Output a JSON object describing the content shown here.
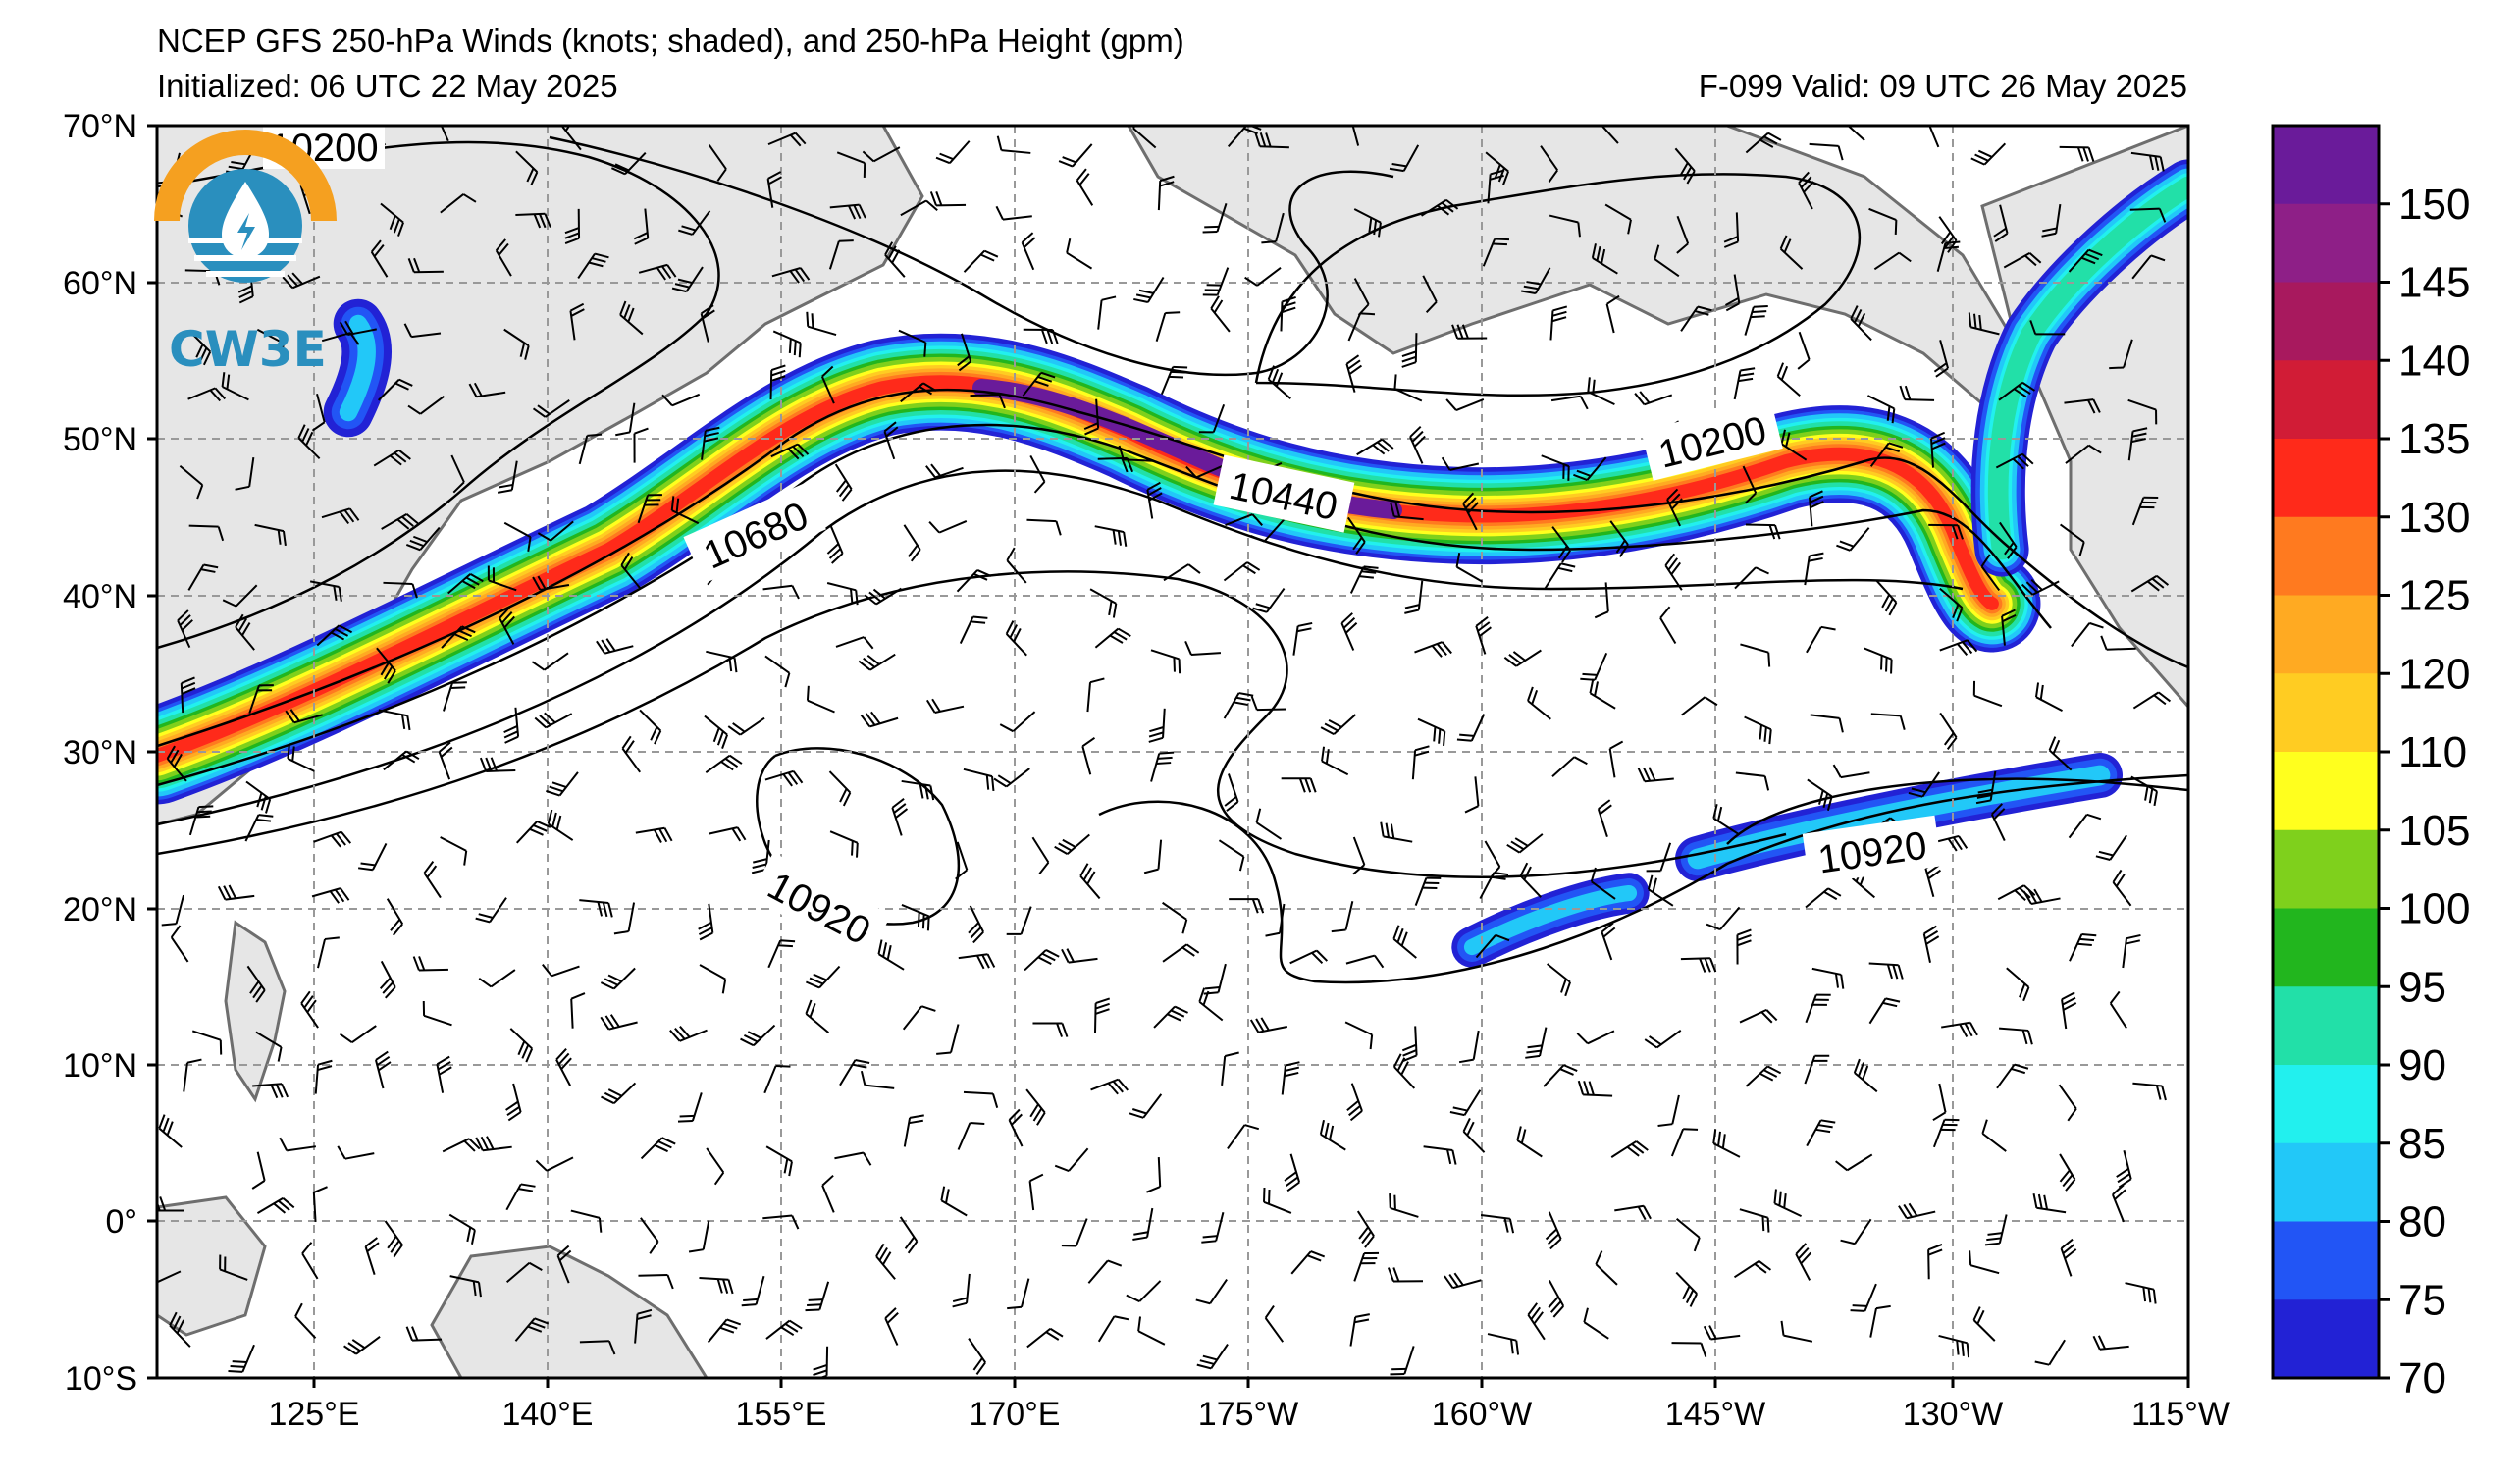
{
  "title": {
    "line1": "NCEP GFS 250-hPa Winds (knots; shaded), and 250-hPa Height (gpm)",
    "initialized": "Initialized: 06 UTC 22 May 2025",
    "valid": "F-099  Valid: 09 UTC 26 May 2025"
  },
  "logo": {
    "text": "CW3E",
    "icon": "cw3e-logo-icon"
  },
  "axes": {
    "lat_ticks": [
      "70°N",
      "60°N",
      "50°N",
      "40°N",
      "30°N",
      "20°N",
      "10°N",
      "0°",
      "10°S"
    ],
    "lon_ticks": [
      "125°E",
      "140°E",
      "155°E",
      "170°E",
      "175°W",
      "160°W",
      "145°W",
      "130°W",
      "115°W"
    ]
  },
  "colorbar": {
    "labels": [
      "150",
      "145",
      "140",
      "135",
      "130",
      "125",
      "120",
      "110",
      "105",
      "100",
      "95",
      "90",
      "85",
      "80",
      "75",
      "70"
    ],
    "colors": [
      "#6a1b9a",
      "#8e1f87",
      "#a8195e",
      "#d11c36",
      "#ff2a1a",
      "#ff7a1f",
      "#ffaa22",
      "#ffcc22",
      "#ffff1e",
      "#7fd01c",
      "#22b61e",
      "#22e0a8",
      "#22f0ee",
      "#22c8f8",
      "#2255f5",
      "#2222d5"
    ]
  },
  "contour_labels": [
    "10200",
    "10440",
    "10680",
    "10200",
    "10920",
    "10920"
  ],
  "colors": {
    "land": "#e6e6e6",
    "coast": "#6e6e6e",
    "grid": "#999999",
    "ocean": "#ffffff"
  }
}
